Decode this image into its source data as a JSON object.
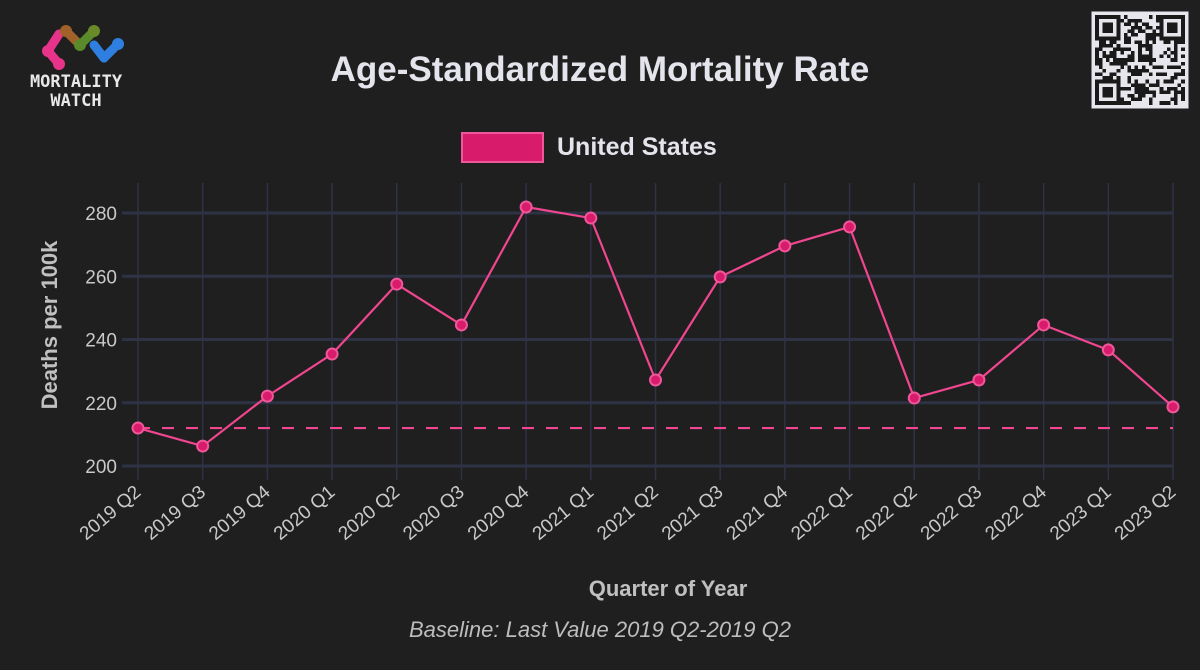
{
  "logo": {
    "line1": "MORTALITY",
    "line2": "WATCH",
    "colors": [
      "#e8338a",
      "#a0622a",
      "#5a8a2a",
      "#2f7fe0"
    ]
  },
  "qr_code": {
    "icon": "qr-code-icon"
  },
  "colors": {
    "background": "#1f1f1f",
    "grid": "#2e3245",
    "series": "#f0468f",
    "legend_fill": "#d81b6a",
    "legend_border": "#f0569a"
  },
  "chart_data": {
    "type": "line",
    "title": "Age-Standardized Mortality Rate",
    "xlabel": "Quarter of Year",
    "ylabel": "Deaths per 100k",
    "caption": "Baseline: Last Value 2019 Q2-2019 Q2",
    "legend_position": "top-center",
    "grid": true,
    "ylim": [
      197,
      290
    ],
    "yticks": [
      200,
      220,
      240,
      260,
      280
    ],
    "categories": [
      "2019 Q2",
      "2019 Q3",
      "2019 Q4",
      "2020 Q1",
      "2020 Q2",
      "2020 Q3",
      "2020 Q4",
      "2021 Q1",
      "2021 Q2",
      "2021 Q3",
      "2021 Q4",
      "2022 Q1",
      "2022 Q2",
      "2022 Q3",
      "2022 Q4",
      "2023 Q1",
      "2023 Q2"
    ],
    "series": [
      {
        "name": "United States",
        "values": [
          212.0,
          206.3,
          222.1,
          235.4,
          257.5,
          244.6,
          281.9,
          278.4,
          227.2,
          259.8,
          269.6,
          275.6,
          221.5,
          227.2,
          244.6,
          236.7,
          218.7
        ]
      }
    ],
    "baseline": {
      "label": "Last Value 2019 Q2-2019 Q2",
      "value": 212.0,
      "style": "dashed"
    }
  }
}
